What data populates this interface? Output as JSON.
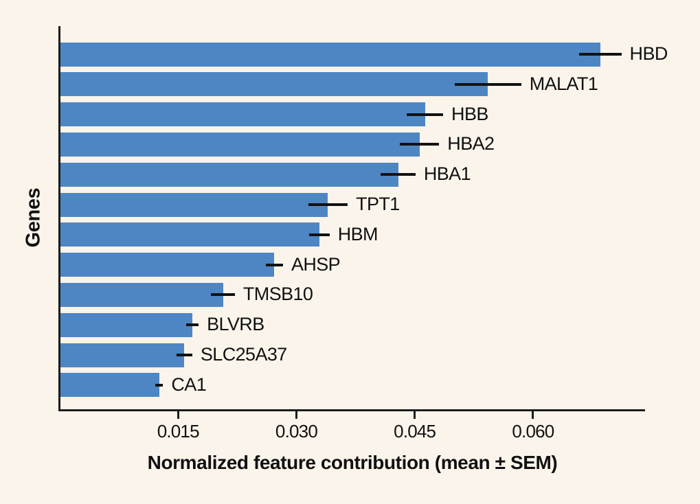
{
  "figure": {
    "background_color": "#faf4eb",
    "bar_color": "#4e86c4",
    "spine_color": "#1c1c1c",
    "errorbar_color": "#121212",
    "text_color": "#111111"
  },
  "chart_data": {
    "type": "bar",
    "orientation": "horizontal",
    "title": "",
    "xlabel": "Normalized feature contribution (mean ± SEM)",
    "ylabel": "Genes",
    "grid": false,
    "legend": null,
    "xlim": [
      0,
      0.0742
    ],
    "xticks": [
      0.015,
      0.03,
      0.045,
      0.06
    ],
    "xtick_labels": [
      "0.015",
      "0.030",
      "0.045",
      "0.060"
    ],
    "categories": [
      "HBD",
      "MALAT1",
      "HBB",
      "HBA2",
      "HBA1",
      "TPT1",
      "HBM",
      "AHSP",
      "TMSB10",
      "BLVRB",
      "SLC25A37",
      "CA1"
    ],
    "series": [
      {
        "name": "mean",
        "values": [
          0.0685,
          0.0543,
          0.0463,
          0.0456,
          0.0429,
          0.034,
          0.0329,
          0.0272,
          0.0207,
          0.0168,
          0.0158,
          0.0126
        ]
      },
      {
        "name": "sem",
        "values": [
          0.0027,
          0.0042,
          0.0023,
          0.0025,
          0.0022,
          0.0025,
          0.0013,
          0.0011,
          0.0015,
          0.0008,
          0.001,
          0.0005
        ]
      }
    ]
  }
}
